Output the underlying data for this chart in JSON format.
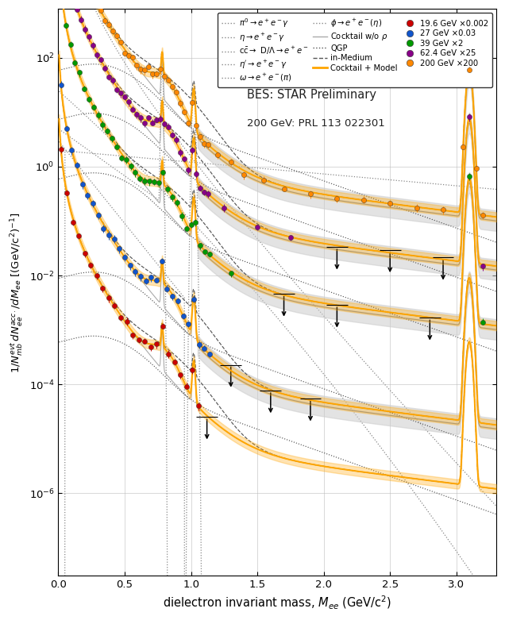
{
  "title_text1": "BES: STAR Preliminary",
  "title_text2": "200 GeV: PRL 113 022301",
  "xlabel": "dielectron invariant mass, $M_{ee}$ (GeV/c$^2$)",
  "ylabel": "$1/N_{mb}^{evt}\\,dN_{ee}^{acc.}/dM_{ee}$ [(GeV/c$^2$)$^{-1}$]",
  "xlim": [
    0.0,
    3.3
  ],
  "ylim": [
    3e-08,
    800.0
  ],
  "energy_colors": {
    "19.6": "#cc0000",
    "27": "#1155cc",
    "39": "#009900",
    "62.4": "#880088",
    "200": "#ff8800"
  },
  "scales": {
    "19.6": 0.002,
    "27": 0.03,
    "39": 2.0,
    "62.4": 25.0,
    "200": 200.0
  },
  "background_color": "#ffffff",
  "grid_color": "#bbbbbb"
}
